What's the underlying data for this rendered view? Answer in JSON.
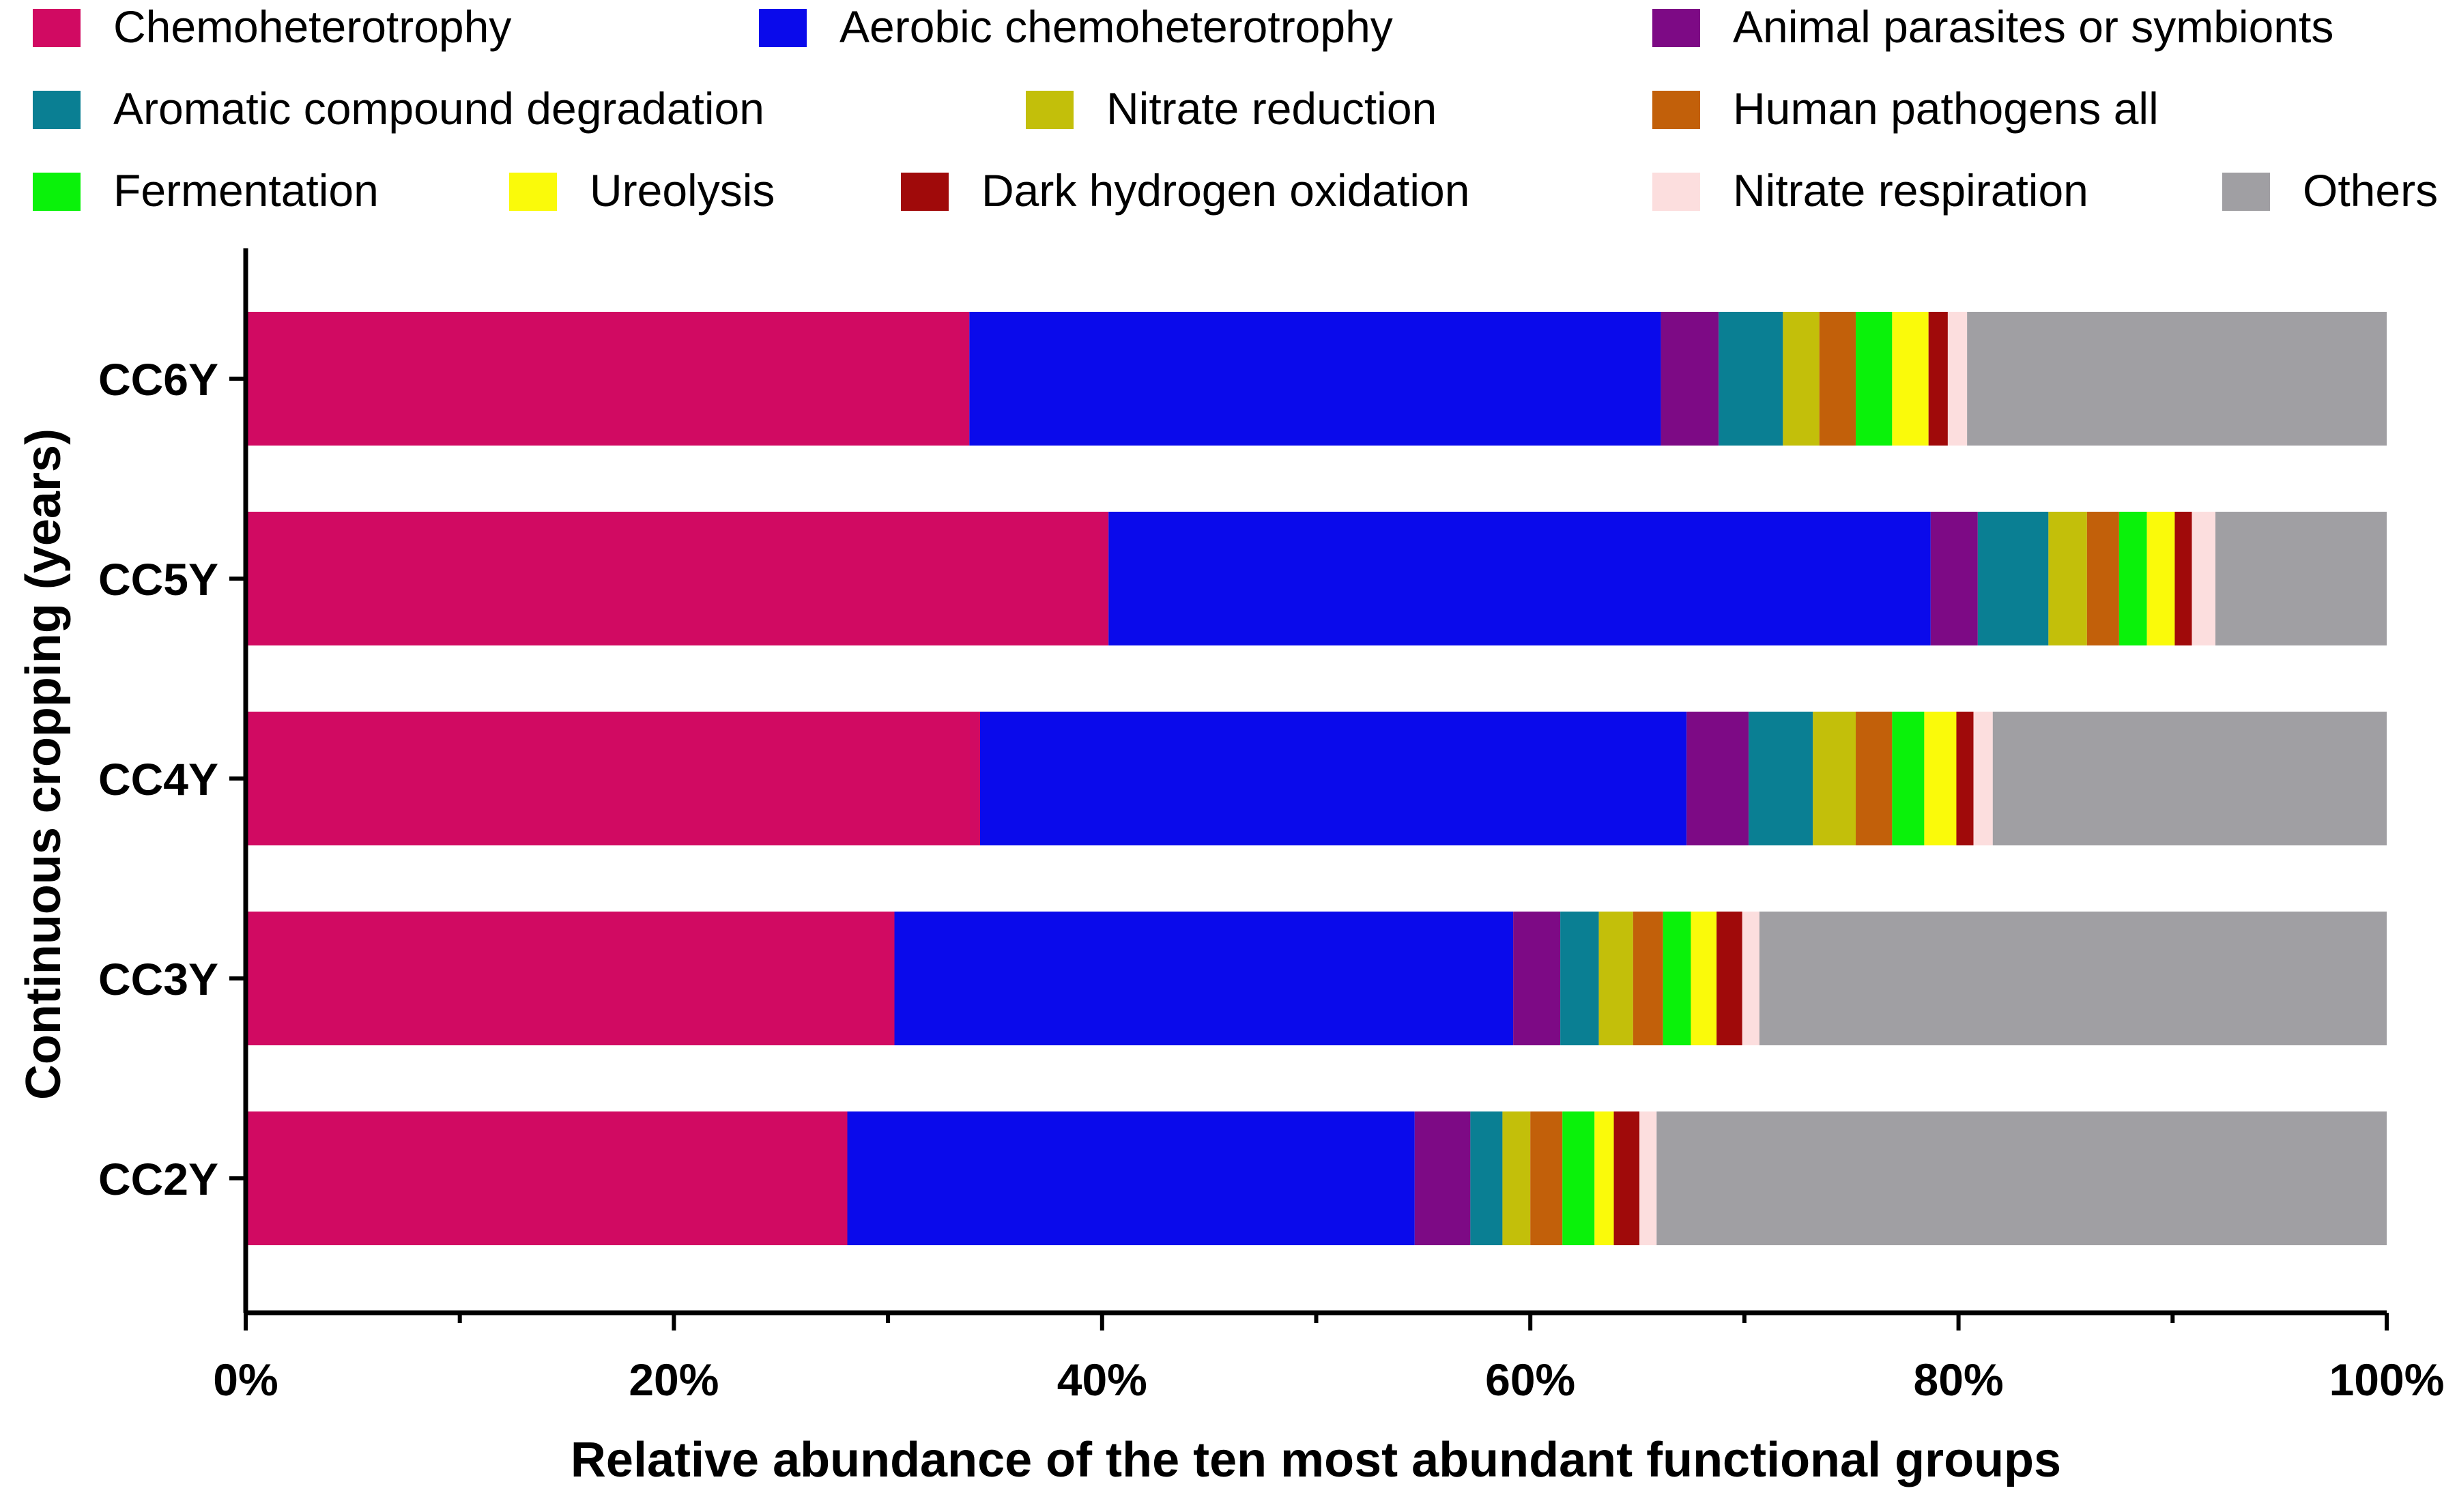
{
  "chart_data": {
    "type": "bar",
    "orientation": "horizontal",
    "stacked": true,
    "title": "",
    "xlabel": "Relative abundance of the ten most abundant functional groups",
    "ylabel": "Continuous cropping (years)",
    "xlim": [
      0,
      100
    ],
    "x_ticks": [
      "0%",
      "20%",
      "40%",
      "60%",
      "80%",
      "100%"
    ],
    "x_tick_values": [
      0,
      20,
      40,
      60,
      80,
      100
    ],
    "grid": false,
    "legend_position": "top",
    "categories": [
      "CC6Y",
      "CC5Y",
      "CC4Y",
      "CC3Y",
      "CC2Y"
    ],
    "series": [
      {
        "name": "Chemoheterotrophy",
        "color": "#D10A62",
        "values": [
          33.8,
          40.3,
          34.3,
          30.3,
          28.1
        ]
      },
      {
        "name": "Aerobic chemoheterotrophy",
        "color": "#0A0AEB",
        "values": [
          32.3,
          38.4,
          33.0,
          28.9,
          26.5
        ]
      },
      {
        "name": "Animal parasites or symbionts",
        "color": "#7D0A85",
        "values": [
          2.7,
          2.2,
          2.9,
          2.2,
          2.6
        ]
      },
      {
        "name": "Aromatic compound degradation",
        "color": "#0A7F93",
        "values": [
          3.0,
          3.3,
          3.0,
          1.8,
          1.5
        ]
      },
      {
        "name": "Nitrate reduction",
        "color": "#C3BF0A",
        "values": [
          1.7,
          1.8,
          2.0,
          1.6,
          1.3
        ]
      },
      {
        "name": "Human pathogens all",
        "color": "#C2600A",
        "values": [
          1.7,
          1.5,
          1.7,
          1.4,
          1.5
        ]
      },
      {
        "name": "Fermentation",
        "color": "#0AF20A",
        "values": [
          1.7,
          1.3,
          1.5,
          1.3,
          1.5
        ]
      },
      {
        "name": "Ureolysis",
        "color": "#FAFA0A",
        "values": [
          1.7,
          1.3,
          1.5,
          1.2,
          0.9
        ]
      },
      {
        "name": "Dark hydrogen oxidation",
        "color": "#A00A0A",
        "values": [
          0.9,
          0.8,
          0.8,
          1.2,
          1.2
        ]
      },
      {
        "name": "Nitrate respiration",
        "color": "#FCDEDE",
        "values": [
          0.9,
          1.1,
          0.9,
          0.8,
          0.8
        ]
      },
      {
        "name": "Others",
        "color": "#A09FA3",
        "values": [
          19.6,
          8.0,
          18.4,
          29.3,
          34.1
        ]
      }
    ]
  }
}
